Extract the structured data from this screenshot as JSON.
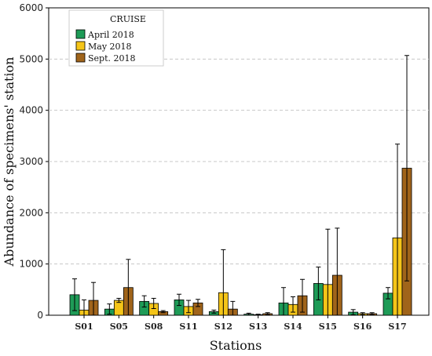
{
  "chart_data": {
    "type": "bar",
    "xlabel": "Stations",
    "ylabel": "Abundance of specimens' station",
    "ylim": [
      0,
      6000
    ],
    "y_ticks": [
      0,
      1000,
      2000,
      3000,
      4000,
      5000,
      6000
    ],
    "grid": "horizontal dashed",
    "legend_title": "CRUISE",
    "legend_position": "top-left",
    "error_bars": true,
    "categories": [
      "S01",
      "S05",
      "S08",
      "S11",
      "S12",
      "S13",
      "S14",
      "S15",
      "S16",
      "S17"
    ],
    "series": [
      {
        "name": "April 2018",
        "color": "#1e9b57",
        "values": [
          400,
          120,
          270,
          300,
          70,
          20,
          240,
          620,
          60,
          430
        ],
        "error": [
          310,
          100,
          110,
          110,
          30,
          20,
          300,
          320,
          50,
          110
        ]
      },
      {
        "name": "May 2018",
        "color": "#f5c518",
        "values": [
          100,
          290,
          230,
          170,
          440,
          10,
          210,
          600,
          30,
          1510
        ],
        "error": [
          200,
          40,
          100,
          120,
          840,
          10,
          150,
          1080,
          20,
          1830
        ]
      },
      {
        "name": "Sept. 2018",
        "color": "#a0641a",
        "values": [
          290,
          540,
          70,
          240,
          120,
          30,
          380,
          780,
          30,
          2870
        ],
        "error": [
          350,
          550,
          20,
          70,
          150,
          20,
          320,
          920,
          20,
          2200
        ]
      }
    ]
  }
}
